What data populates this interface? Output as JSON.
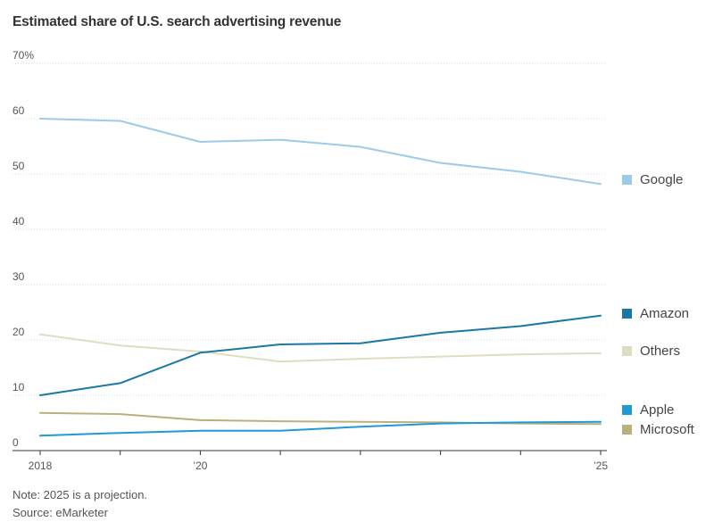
{
  "title": "Estimated share of U.S. search advertising revenue",
  "note": "Note: 2025 is a projection.",
  "source": "Source: eMarketer",
  "chart_data": {
    "type": "line",
    "title": "Estimated share of U.S. search advertising revenue",
    "ylim": [
      0,
      70
    ],
    "y_ticks": [
      0,
      10,
      20,
      30,
      40,
      50,
      60,
      70
    ],
    "y_tick_labels": [
      "0",
      "10",
      "20",
      "30",
      "40",
      "50",
      "60",
      "70%"
    ],
    "x": [
      2018,
      2019,
      2020,
      2021,
      2022,
      2023,
      2024,
      2025
    ],
    "x_tick_values": [
      2018,
      2020,
      2025
    ],
    "x_tick_labels": [
      "2018",
      "’20",
      "’25"
    ],
    "grid": true,
    "legend": "right",
    "series": [
      {
        "name": "Google",
        "color": "#9ccbe8",
        "values": [
          60.0,
          59.6,
          55.8,
          56.2,
          54.9,
          52.0,
          50.4,
          48.2
        ]
      },
      {
        "name": "Amazon",
        "color": "#1a78a6",
        "values": [
          10.0,
          12.2,
          17.7,
          19.2,
          19.4,
          21.3,
          22.5,
          24.4
        ]
      },
      {
        "name": "Others",
        "color": "#e0dcc2",
        "values": [
          21.0,
          19.0,
          17.9,
          16.1,
          16.6,
          17.0,
          17.4,
          17.6
        ]
      },
      {
        "name": "Apple",
        "color": "#1f9ad6",
        "values": [
          2.7,
          3.2,
          3.6,
          3.6,
          4.3,
          4.9,
          5.1,
          5.2
        ]
      },
      {
        "name": "Microsoft",
        "color": "#bab07c",
        "values": [
          6.8,
          6.6,
          5.5,
          5.3,
          5.2,
          5.1,
          4.9,
          4.8
        ]
      }
    ]
  }
}
